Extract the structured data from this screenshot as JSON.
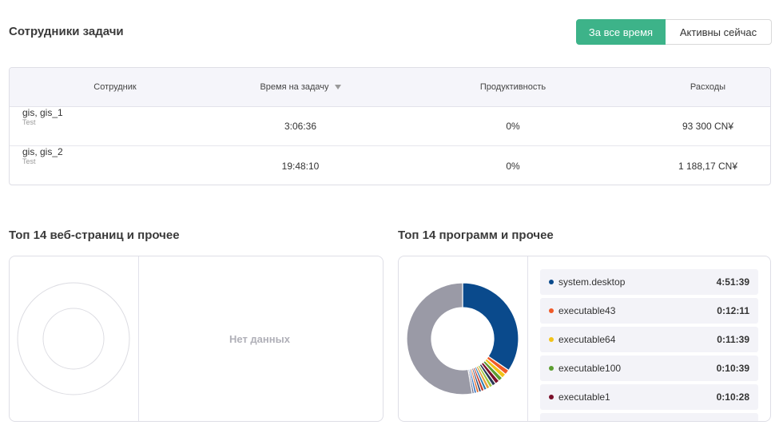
{
  "header": {
    "title": "Сотрудники задачи",
    "toggle_all_time": "За все время",
    "toggle_active_now": "Активны сейчас"
  },
  "table": {
    "columns": {
      "employee": "Сотрудник",
      "time": "Время на задачу",
      "productivity": "Продуктивность",
      "expenses": "Расходы"
    },
    "rows": [
      {
        "name": "gis, gis_1",
        "sub": "Test",
        "time": "3:06:36",
        "productivity": "0%",
        "expenses": "93 300 CN¥"
      },
      {
        "name": "gis, gis_2",
        "sub": "Test",
        "time": "19:48:10",
        "productivity": "0%",
        "expenses": "1 188,17 CN¥"
      }
    ]
  },
  "web": {
    "title": "Топ 14 веб-страниц и прочее",
    "empty": "Нет данных"
  },
  "apps": {
    "title": "Топ 14 программ и прочее",
    "items": [
      {
        "name": "system.desktop",
        "time": "4:51:39",
        "color": "#0a4a8c"
      },
      {
        "name": "executable43",
        "time": "0:12:11",
        "color": "#f05a28"
      },
      {
        "name": "executable64",
        "time": "0:11:39",
        "color": "#f2c318"
      },
      {
        "name": "executable100",
        "time": "0:10:39",
        "color": "#5c9e31"
      },
      {
        "name": "executable1",
        "time": "0:10:28",
        "color": "#7a0f2a"
      }
    ]
  },
  "chart_data": {
    "type": "pie",
    "slices": [
      {
        "value": 291.65,
        "color": "#0a4a8c"
      },
      {
        "value": 12.18,
        "color": "#f05a28"
      },
      {
        "value": 11.65,
        "color": "#f2c318"
      },
      {
        "value": 10.65,
        "color": "#5c9e31"
      },
      {
        "value": 10.47,
        "color": "#7a0f2a"
      },
      {
        "value": 9,
        "color": "#2b3a55"
      },
      {
        "value": 8,
        "color": "#9bc53d"
      },
      {
        "value": 8,
        "color": "#e8a33d"
      },
      {
        "value": 7,
        "color": "#2a7ab0"
      },
      {
        "value": 7,
        "color": "#c0392b"
      },
      {
        "value": 6,
        "color": "#1f3f6e"
      },
      {
        "value": 6,
        "color": "#e46c2c"
      },
      {
        "value": 6,
        "color": "#3a78c2"
      },
      {
        "value": 5,
        "color": "#6b6b8a"
      },
      {
        "value": 445,
        "color": "#9a9aa6"
      }
    ]
  }
}
